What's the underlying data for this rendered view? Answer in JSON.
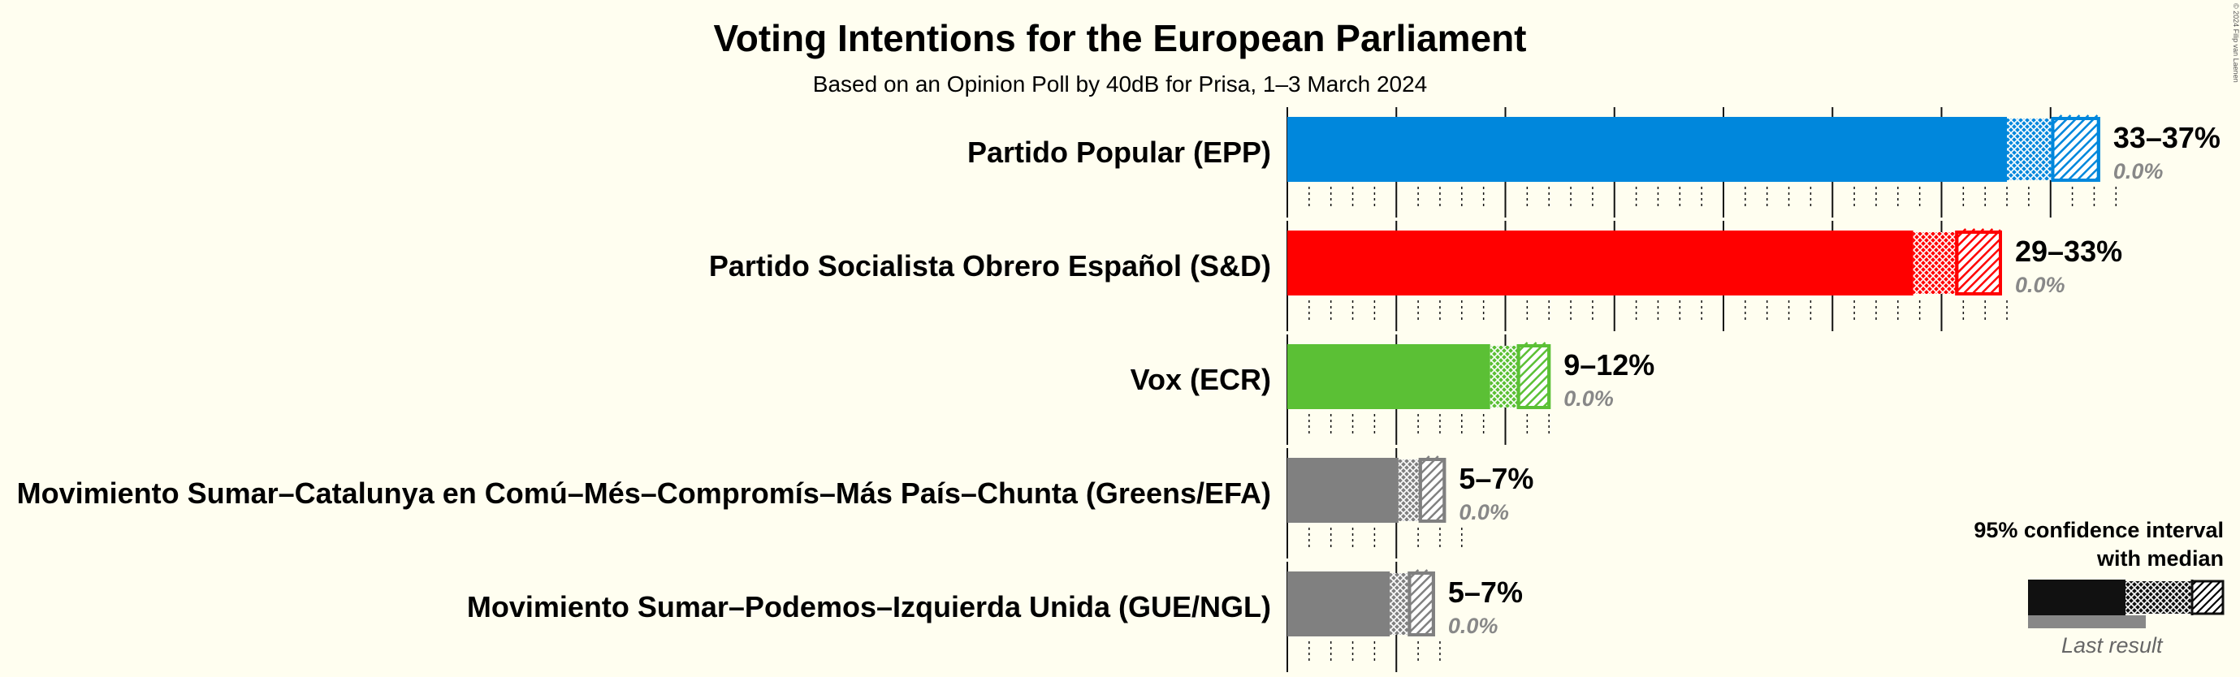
{
  "title": "Voting Intentions for the European Parliament",
  "subtitle": "Based on an Opinion Poll by 40dB for Prisa, 1–3 March 2024",
  "copyright": "© 2024 Filip van Laenen",
  "legend": {
    "title_line1": "95% confidence interval",
    "title_line2": "with median",
    "last_result": "Last result"
  },
  "chart_data": {
    "type": "bar",
    "orientation": "horizontal",
    "title": "Voting Intentions for the European Parliament",
    "subtitle": "Based on an Opinion Poll by 40dB for Prisa, 1–3 March 2024",
    "xlim": [
      0,
      37.5
    ],
    "tick_step": 1,
    "major_tick_step": 5,
    "categories": [
      "Partido Popular (EPP)",
      "Partido Socialista Obrero Español (S&D)",
      "Vox (ECR)",
      "Movimiento Sumar–Catalunya en Comú–Més–Compromís–Más País–Chunta (Greens/EFA)",
      "Movimiento Sumar–Podemos–Izquierda Unida (GUE/NGL)"
    ],
    "series": [
      {
        "party": "Partido Popular (EPP)",
        "color": "#0087DC",
        "ci_low": 33,
        "median": 35.1,
        "ci_high": 37.2,
        "range_label": "33–37%",
        "last_result": 0.0,
        "last_label": "0.0%"
      },
      {
        "party": "Partido Socialista Obrero Español (S&D)",
        "color": "#FF0000",
        "ci_low": 28.7,
        "median": 30.7,
        "ci_high": 32.7,
        "range_label": "29–33%",
        "last_result": 0.0,
        "last_label": "0.0%"
      },
      {
        "party": "Vox (ECR)",
        "color": "#5BC035",
        "ci_low": 9.3,
        "median": 10.6,
        "ci_high": 12.0,
        "range_label": "9–12%",
        "last_result": 0.0,
        "last_label": "0.0%"
      },
      {
        "party": "Movimiento Sumar–Catalunya en Comú–Més–Compromís–Más País–Chunta (Greens/EFA)",
        "color": "#808080",
        "ci_low": 5.1,
        "median": 6.1,
        "ci_high": 7.2,
        "range_label": "5–7%",
        "last_result": 0.0,
        "last_label": "0.0%"
      },
      {
        "party": "Movimiento Sumar–Podemos–Izquierda Unida (GUE/NGL)",
        "color": "#808080",
        "ci_low": 4.7,
        "median": 5.6,
        "ci_high": 6.7,
        "range_label": "5–7%",
        "last_result": 0.0,
        "last_label": "0.0%"
      }
    ]
  }
}
